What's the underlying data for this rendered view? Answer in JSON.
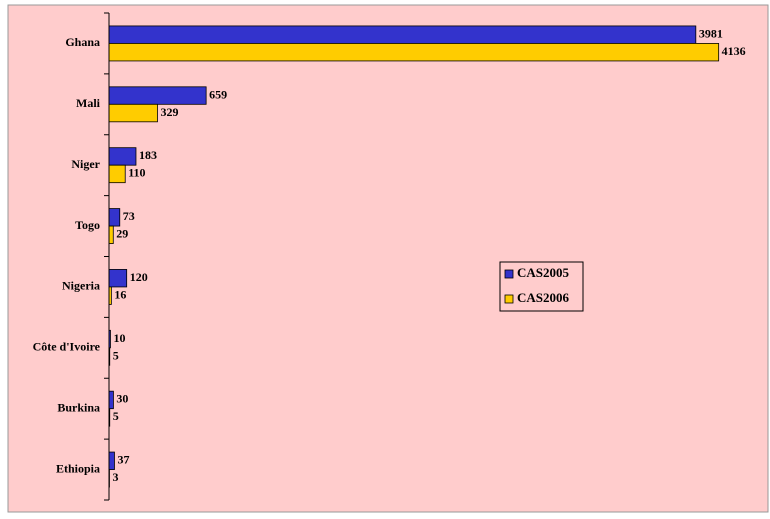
{
  "chart_data": {
    "type": "bar",
    "orientation": "horizontal",
    "categories": [
      "Ghana",
      "Mali",
      "Niger",
      "Togo",
      "Nigeria",
      "Côte d'Ivoire",
      "Burkina",
      "Ethiopia"
    ],
    "series": [
      {
        "name": "CAS2005",
        "color": "#3333cc",
        "values": [
          3981,
          659,
          183,
          73,
          120,
          10,
          30,
          37
        ]
      },
      {
        "name": "CAS2006",
        "color": "#ffcc00",
        "values": [
          4136,
          329,
          110,
          29,
          16,
          5,
          5,
          3
        ]
      }
    ],
    "xlim": [
      0,
      4430
    ],
    "legend": "right",
    "background": "#ffcccc"
  }
}
